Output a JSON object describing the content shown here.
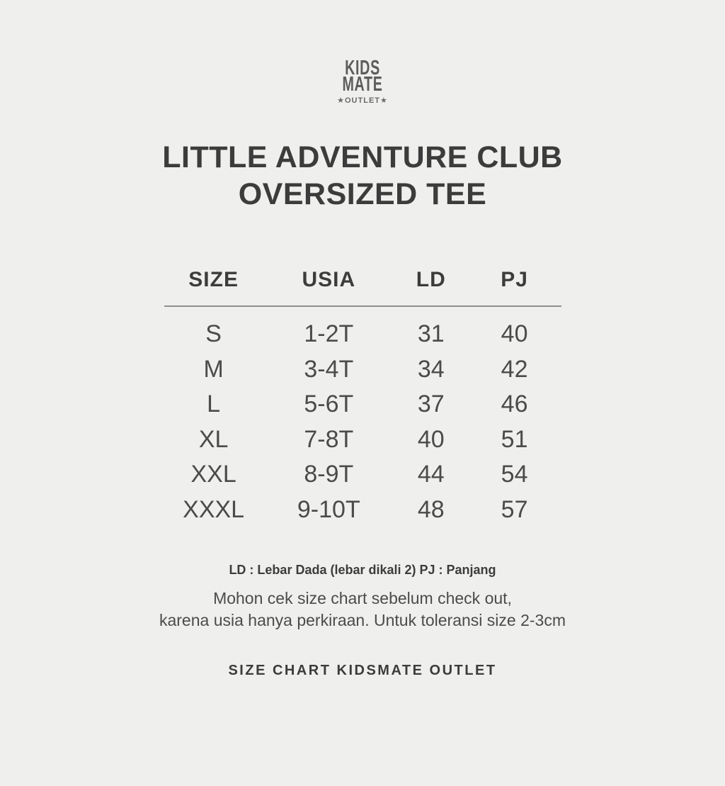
{
  "brand": {
    "name_line1": "KIDS",
    "name_line2": "MATE",
    "badge": "★OUTLET★"
  },
  "title": {
    "line1": "LITTLE ADVENTURE CLUB",
    "line2": "OVERSIZED TEE"
  },
  "size_table": {
    "columns": [
      "SIZE",
      "USIA",
      "LD",
      "PJ"
    ],
    "rows": [
      [
        "S",
        "1-2T",
        "31",
        "40"
      ],
      [
        "M",
        "3-4T",
        "34",
        "42"
      ],
      [
        "L",
        "5-6T",
        "37",
        "46"
      ],
      [
        "XL",
        "7-8T",
        "40",
        "51"
      ],
      [
        "XXL",
        "8-9T",
        "44",
        "54"
      ],
      [
        "XXXL",
        "9-10T",
        "48",
        "57"
      ]
    ]
  },
  "notes": {
    "legend": "LD : Lebar Dada (lebar dikali 2) PJ : Panjang",
    "disclaimer_line1": "Mohon cek size chart sebelum check out,",
    "disclaimer_line2": "karena usia hanya perkiraan. Untuk toleransi size 2-3cm"
  },
  "footer": {
    "caption": "SIZE CHART KIDSMATE OUTLET"
  },
  "colors": {
    "background": "#efefed",
    "heading_text": "#3c3c3c",
    "body_text": "#4b4b4b",
    "logo_text": "#5d5d5d",
    "rule": "#8f8f8f"
  }
}
